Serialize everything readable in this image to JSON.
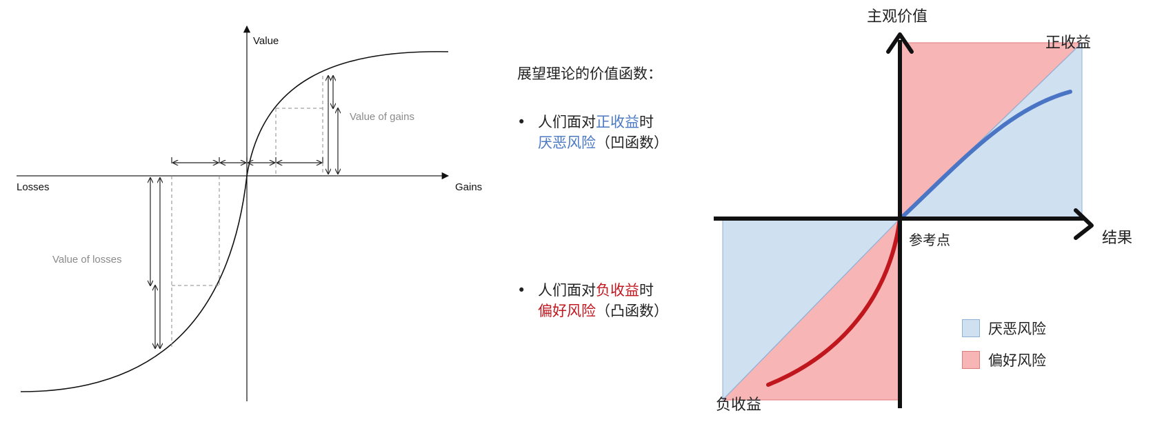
{
  "left_diagram": {
    "y_axis_label": "Value",
    "x_left_label": "Losses",
    "x_right_label": "Gains",
    "gains_annotation": "Value of gains",
    "losses_annotation": "Value of losses"
  },
  "middle_text": {
    "title": "展望理论的价值函数：",
    "gain_line1_prefix": "人们面对",
    "gain_line1_highlight": "正收益",
    "gain_line1_suffix": "时",
    "gain_line2_highlight": "厌恶风险",
    "gain_line2_suffix": "（凹函数）",
    "loss_line1_prefix": "人们面对",
    "loss_line1_highlight": "负收益",
    "loss_line1_suffix": "时",
    "loss_line2_highlight": "偏好风险",
    "loss_line2_suffix": "（凸函数）",
    "bullet": "•"
  },
  "right_diagram": {
    "y_axis_label": "主观价值",
    "x_axis_label": "结果",
    "origin_label": "参考点",
    "top_right_label": "正收益",
    "bottom_left_label": "负收益",
    "legend": [
      {
        "label": "厌恶风险",
        "color": "#cfe0f1"
      },
      {
        "label": "偏好风险",
        "color": "#f7b5b5"
      }
    ],
    "gain_curve_color": "#4a74c4",
    "loss_curve_color": "#c0161e"
  }
}
